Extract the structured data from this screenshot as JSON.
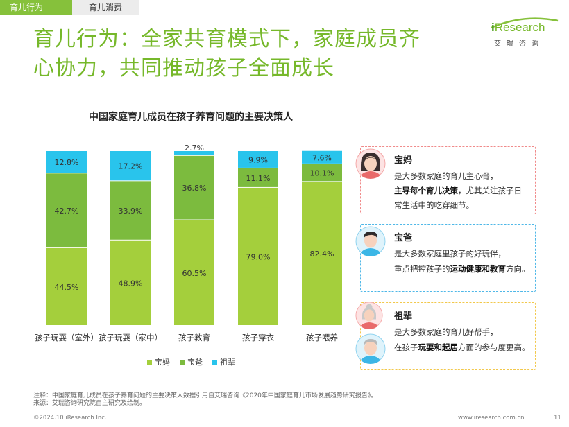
{
  "tabs": {
    "active": "育儿行为",
    "inactive": "育儿消费"
  },
  "logo": {
    "main_i": "i",
    "main_rest": "Research",
    "sub": "艾瑞咨询"
  },
  "headline": {
    "line1": "育儿行为：全家共育模式下，家庭成员齐",
    "line2": "心协力，共同推动孩子全面成长"
  },
  "colors": {
    "mom": "#a4cf3c",
    "dad": "#7cbb3e",
    "grand": "#29c4ec",
    "accent": "#76b82a"
  },
  "chart_data": {
    "type": "bar",
    "stacked": true,
    "title": "中国家庭育儿成员在孩子养育问题的主要决策人",
    "categories": [
      "孩子玩耍（室外）",
      "孩子玩耍（家中）",
      "孩子教育",
      "孩子穿衣",
      "孩子喂养"
    ],
    "series": [
      {
        "name": "宝妈",
        "values": [
          44.5,
          48.9,
          60.5,
          79.0,
          82.4
        ],
        "labels": [
          "44.5%",
          "48.9%",
          "60.5%",
          "79.0%",
          "82.4%"
        ]
      },
      {
        "name": "宝爸",
        "values": [
          42.7,
          33.9,
          36.8,
          11.1,
          10.1
        ],
        "labels": [
          "42.7%",
          "33.9%",
          "36.8%",
          "11.1%",
          "10.1%"
        ]
      },
      {
        "name": "祖辈",
        "values": [
          12.8,
          17.2,
          2.7,
          9.9,
          7.6
        ],
        "labels": [
          "12.8%",
          "17.2%",
          "2.7%",
          "9.9%",
          "7.6%"
        ]
      }
    ],
    "ylim": [
      0,
      100
    ],
    "legend_position": "bottom"
  },
  "cards": {
    "mom": {
      "title": "宝妈",
      "line1": "是大多数家庭的育儿主心骨，",
      "line2_bold": "主导每个育儿决策",
      "line2_rest": "，尤其关注孩子日",
      "line3": "常生活中的吃穿细节。"
    },
    "dad": {
      "title": "宝爸",
      "line1": "是大多数家庭里孩子的好玩伴，",
      "line2_pre": "重点把控孩子的",
      "line2_bold": "运动健康和教育",
      "line2_post": "方向。"
    },
    "grand": {
      "title": "祖辈",
      "line1": "是大多数家庭的育儿好帮手，",
      "line2_pre": "在孩子",
      "line2_bold": "玩耍和起居",
      "line2_post": "方面的参与度更高。"
    }
  },
  "footer": {
    "note1": "注释：中国家庭育儿成员在孩子养育问题的主要决策人数据引用自艾瑞咨询《2020年中国家庭育儿市场发展趋势研究报告》。",
    "note2": "来源：艾瑞咨询研究院自主研究及绘制。",
    "copyright": "©2024.10 iResearch Inc.",
    "website": "www.iresearch.com.cn",
    "page": "11"
  }
}
